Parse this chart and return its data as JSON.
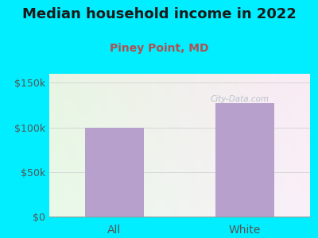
{
  "title": "Median household income in 2022",
  "subtitle": "Piney Point, MD",
  "categories": [
    "All",
    "White"
  ],
  "values": [
    100000,
    127000
  ],
  "bar_color": "#b8a0cc",
  "ylim": [
    0,
    160000
  ],
  "yticks": [
    0,
    50000,
    100000,
    150000
  ],
  "ytick_labels": [
    "$0",
    "$50k",
    "$100k",
    "$150k"
  ],
  "title_fontsize": 13,
  "subtitle_fontsize": 10,
  "subtitle_color": "#b05050",
  "title_color": "#1a1a1a",
  "background_outer": "#00eeff",
  "watermark": "City-Data.com",
  "tick_color": "#555555",
  "tick_fontsize": 9,
  "xtick_fontsize": 10
}
